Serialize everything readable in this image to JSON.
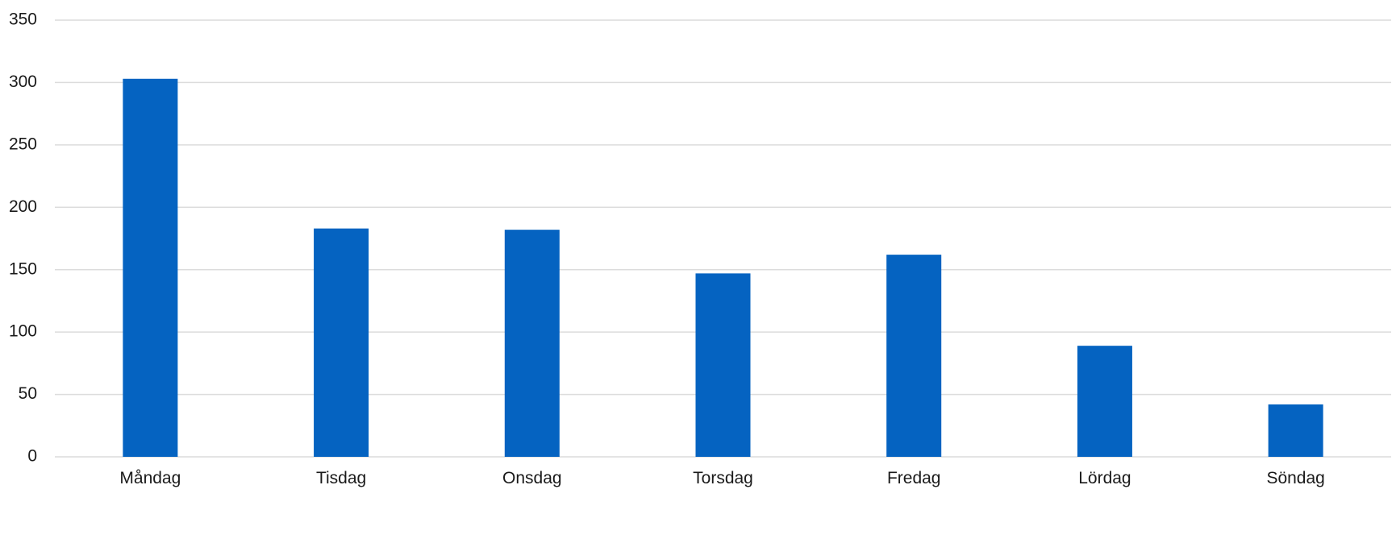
{
  "chart_data": {
    "type": "bar",
    "title": "",
    "xlabel": "",
    "ylabel": "",
    "categories": [
      "Måndag",
      "Tisdag",
      "Onsdag",
      "Torsdag",
      "Fredag",
      "Lördag",
      "Söndag"
    ],
    "values": [
      303,
      183,
      182,
      147,
      162,
      89,
      42
    ],
    "ylim": [
      0,
      350
    ],
    "yticks": [
      0,
      50,
      100,
      150,
      200,
      250,
      300,
      350
    ],
    "grid": true,
    "legend": "none",
    "bar_color": "#0563C1"
  }
}
